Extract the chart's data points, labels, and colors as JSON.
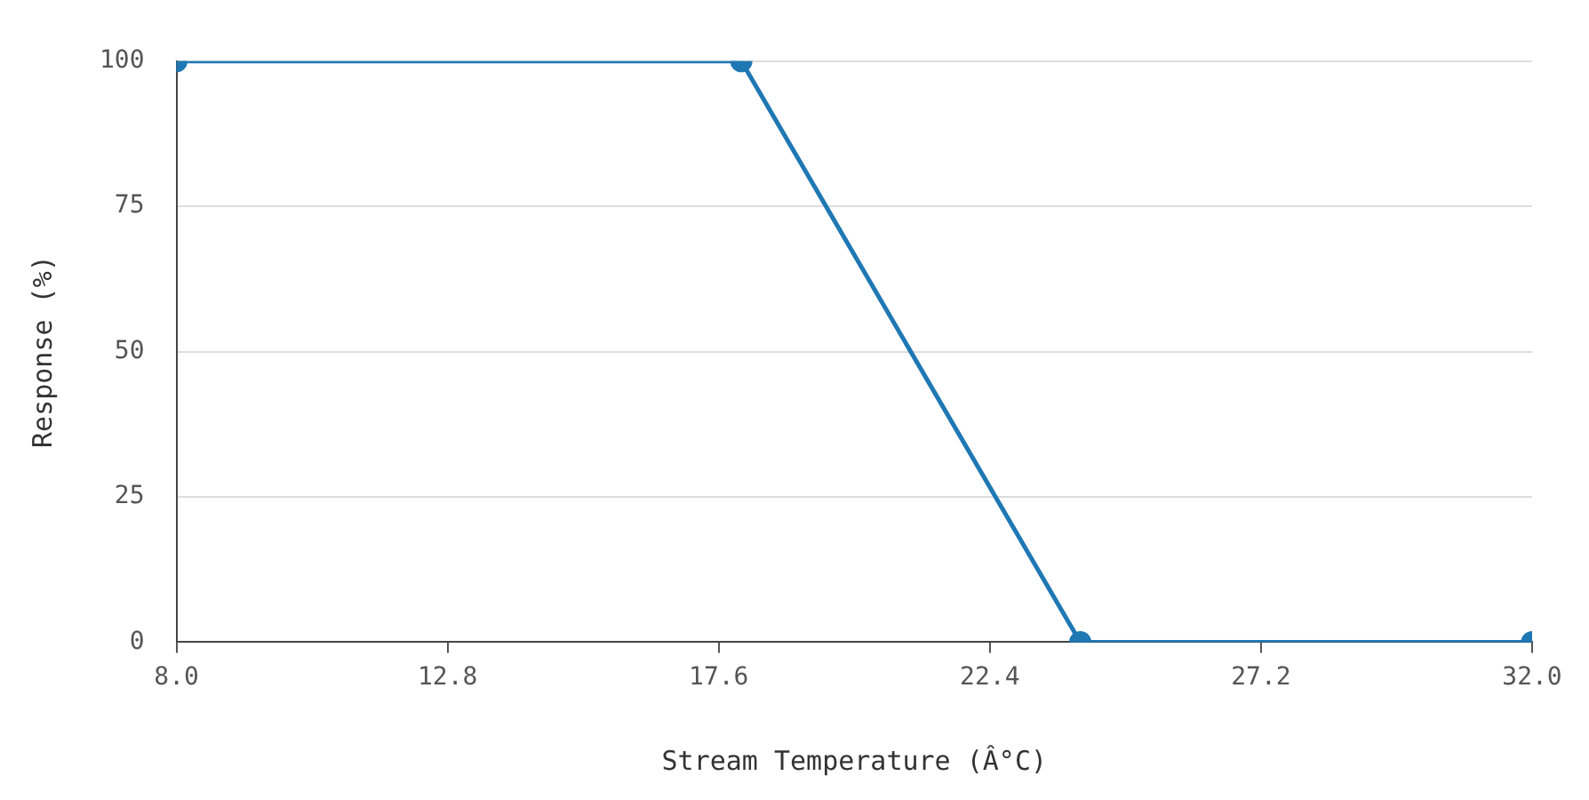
{
  "chart_data": {
    "type": "line",
    "xlabel": "Stream Temperature (Â°C)",
    "ylabel": "Response (%)",
    "x": [
      8,
      18,
      24,
      32
    ],
    "series": [
      {
        "color": "#1f78b4",
        "values": [
          100,
          100,
          0,
          0
        ]
      }
    ],
    "xlim": [
      8,
      32
    ],
    "xticks": [
      {
        "value": 8,
        "label": "8.0"
      },
      12.8,
      17.6,
      22.4,
      27.2,
      {
        "value": 32,
        "label": "32.0"
      }
    ],
    "ylim": [
      0,
      100
    ],
    "yticks": [
      0,
      25,
      50,
      75,
      100
    ],
    "grid": "y",
    "marker": "circle",
    "line_style": "solid"
  }
}
